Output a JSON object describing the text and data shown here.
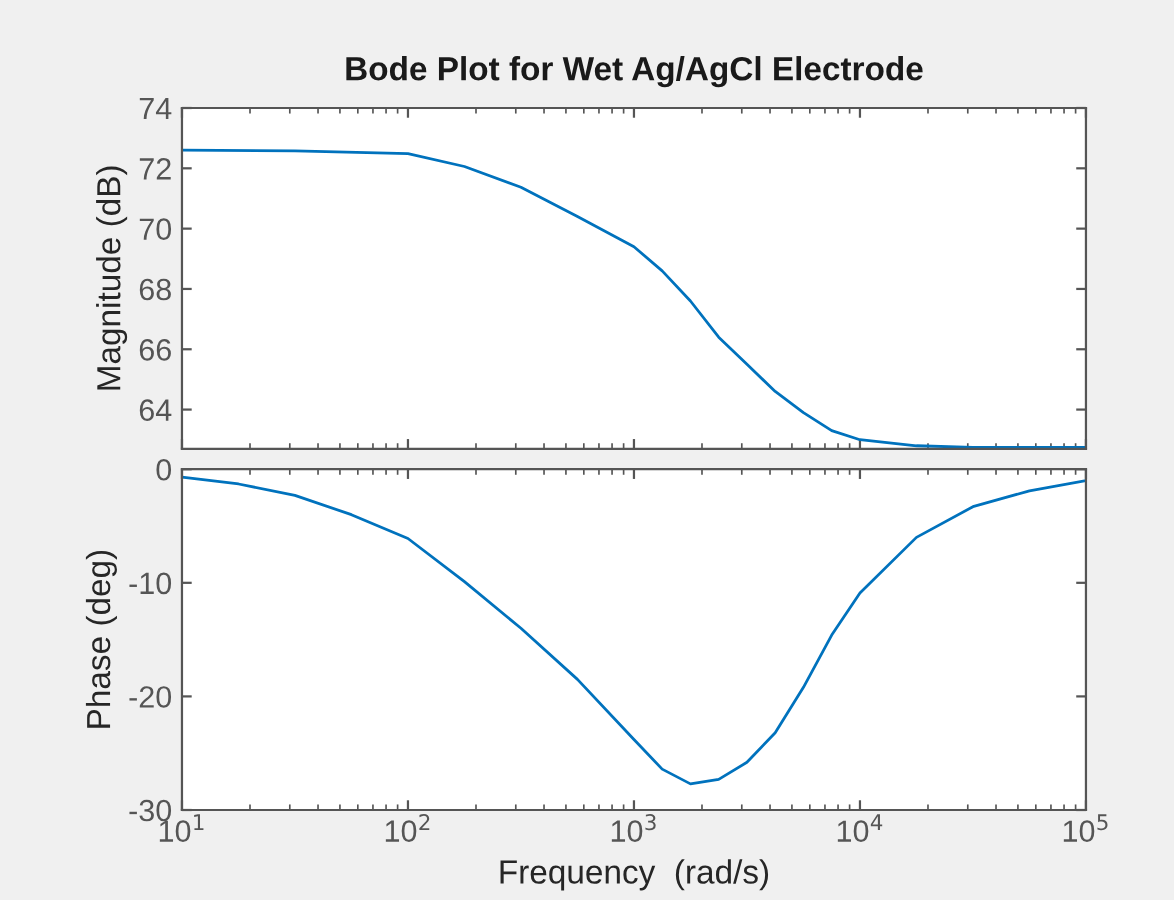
{
  "chart_data": [
    {
      "type": "line",
      "title": "Bode Plot for Wet Ag/AgCl Electrode",
      "ylabel": "Magnitude (dB)",
      "log": "x",
      "xlim": [
        10,
        100000
      ],
      "xticks": [
        {
          "value": 10,
          "label": null
        },
        {
          "value": 100,
          "label": null
        },
        {
          "value": 1000,
          "label": null
        },
        {
          "value": 10000,
          "label": null
        },
        {
          "value": 100000,
          "label": null
        }
      ],
      "ylim": [
        62.7,
        74
      ],
      "yticks": [
        64,
        66,
        68,
        70,
        72,
        74
      ],
      "tick_labels": "y",
      "grid": false,
      "legend": false,
      "series": [
        {
          "color": "#0072bd",
          "x": [
            10,
            31.6,
            100,
            177.8,
            316.2,
            562.3,
            1000,
            1333,
            1778,
            2371,
            3162,
            4217,
            5623,
            7499,
            10000,
            17783,
            31623,
            100000
          ],
          "values": [
            72.6,
            72.58,
            72.49,
            72.06,
            71.37,
            70.4,
            69.4,
            68.6,
            67.6,
            66.4,
            65.5,
            64.6,
            63.9,
            63.3,
            63.0,
            62.8,
            62.75,
            62.75
          ]
        }
      ]
    },
    {
      "type": "line",
      "xlabel": "Frequency  (rad/s)",
      "ylabel": "Phase (deg)",
      "log": "x",
      "xlim": [
        10,
        100000
      ],
      "xticks": [
        {
          "value": 10,
          "label": "10$^{1}$"
        },
        {
          "value": 100,
          "label": "10$^{2}$"
        },
        {
          "value": 1000,
          "label": "10$^{3}$"
        },
        {
          "value": 10000,
          "label": "10$^{4}$"
        },
        {
          "value": 100000,
          "label": "10$^{5}$"
        }
      ],
      "ylim": [
        -30,
        0
      ],
      "yticks": [
        -30,
        -20,
        -10,
        0
      ],
      "grid": false,
      "legend": false,
      "series": [
        {
          "color": "#0072bd",
          "x": [
            10,
            17.8,
            31.6,
            56.2,
            100,
            177.8,
            316.2,
            562.3,
            1000,
            1333,
            1778,
            2371,
            3162,
            4217,
            5623,
            7499,
            10000,
            17783,
            31623,
            56234,
            100000
          ],
          "values": [
            -0.7,
            -1.3,
            -2.3,
            -4.0,
            -6.1,
            -9.9,
            -14.0,
            -18.5,
            -23.8,
            -26.4,
            -27.7,
            -27.3,
            -25.8,
            -23.2,
            -19.2,
            -14.6,
            -10.9,
            -6.0,
            -3.3,
            -1.9,
            -1.0
          ]
        }
      ]
    }
  ]
}
